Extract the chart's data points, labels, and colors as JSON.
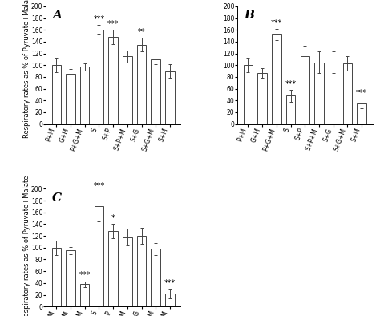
{
  "panels": [
    {
      "label": "A",
      "categories": [
        "P+M",
        "G+M",
        "P+G+M",
        "S",
        "S+P",
        "S+P+M",
        "S+G",
        "S+G+M",
        "S+M"
      ],
      "values": [
        100,
        85,
        97,
        160,
        148,
        115,
        135,
        110,
        90
      ],
      "errors": [
        12,
        8,
        6,
        8,
        12,
        10,
        12,
        8,
        12
      ],
      "significance": [
        "",
        "",
        "",
        "***",
        "***",
        "",
        "**",
        "",
        ""
      ],
      "ylim": [
        0,
        200
      ],
      "yticks": [
        0,
        20,
        40,
        60,
        80,
        100,
        120,
        140,
        160,
        180,
        200
      ]
    },
    {
      "label": "B",
      "categories": [
        "P+M",
        "G+M",
        "P+G+M",
        "S",
        "S+P",
        "S+P+M",
        "S+G",
        "S+G+M",
        "S+M"
      ],
      "values": [
        100,
        87,
        152,
        48,
        115,
        105,
        105,
        103,
        35
      ],
      "errors": [
        12,
        8,
        10,
        10,
        18,
        18,
        18,
        12,
        8
      ],
      "significance": [
        "",
        "",
        "***",
        "***",
        "",
        "",
        "",
        "",
        "***"
      ],
      "ylim": [
        0,
        200
      ],
      "yticks": [
        0,
        20,
        40,
        60,
        80,
        100,
        120,
        140,
        160,
        180,
        200
      ]
    },
    {
      "label": "C",
      "categories": [
        "P+M",
        "G+M",
        "P+G+M",
        "S",
        "S+P",
        "S+P+M",
        "S+G",
        "S+G+M",
        "S+M"
      ],
      "values": [
        100,
        95,
        38,
        170,
        128,
        118,
        120,
        98,
        22
      ],
      "errors": [
        12,
        6,
        5,
        25,
        12,
        14,
        14,
        10,
        8
      ],
      "significance": [
        "",
        "",
        "***",
        "***",
        "*",
        "",
        "",
        "",
        "***"
      ],
      "ylim": [
        0,
        200
      ],
      "yticks": [
        0,
        20,
        40,
        60,
        80,
        100,
        120,
        140,
        160,
        180,
        200
      ]
    }
  ],
  "ylabel": "Respiratory rates as % of Pyruvate+Malate",
  "bar_color": "#ffffff",
  "bar_edgecolor": "#444444",
  "bar_width": 0.65,
  "sig_fontsize": 7,
  "tick_fontsize": 5.5,
  "ylabel_fontsize": 6,
  "panel_label_fontsize": 11
}
